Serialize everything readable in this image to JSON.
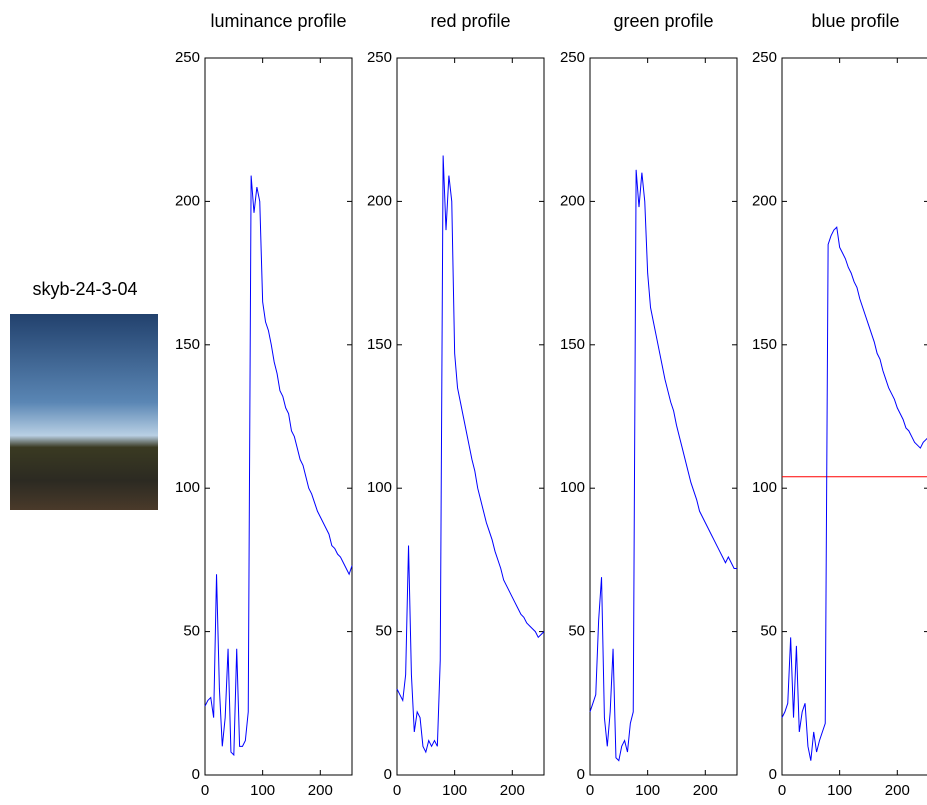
{
  "image_title": "skyb-24-3-04",
  "chart_data": [
    {
      "type": "line",
      "title": "luminance profile",
      "x": [
        0,
        5,
        10,
        15,
        20,
        25,
        30,
        35,
        40,
        45,
        50,
        55,
        60,
        65,
        70,
        75,
        80,
        85,
        90,
        95,
        100,
        105,
        110,
        115,
        120,
        125,
        130,
        135,
        140,
        145,
        150,
        155,
        160,
        165,
        170,
        175,
        180,
        185,
        190,
        195,
        200,
        205,
        210,
        215,
        220,
        225,
        230,
        235,
        240,
        245,
        250,
        255
      ],
      "series": [
        {
          "color": "#0000ff",
          "values": [
            24,
            26,
            27,
            20,
            70,
            30,
            10,
            20,
            44,
            8,
            7,
            44,
            10,
            10,
            12,
            22,
            209,
            196,
            205,
            200,
            165,
            158,
            155,
            150,
            144,
            140,
            134,
            132,
            128,
            126,
            120,
            118,
            114,
            110,
            108,
            104,
            100,
            98,
            95,
            92,
            90,
            88,
            86,
            84,
            80,
            79,
            77,
            76,
            74,
            72,
            70,
            73
          ]
        }
      ],
      "xlim": [
        0,
        255
      ],
      "ylim": [
        0,
        250
      ],
      "xticks": [
        0,
        100,
        200
      ],
      "yticks": [
        0,
        50,
        100,
        150,
        200,
        250
      ]
    },
    {
      "type": "line",
      "title": "red profile",
      "x": [
        0,
        5,
        10,
        15,
        20,
        25,
        30,
        35,
        40,
        45,
        50,
        55,
        60,
        65,
        70,
        75,
        80,
        85,
        90,
        95,
        100,
        105,
        110,
        115,
        120,
        125,
        130,
        135,
        140,
        145,
        150,
        155,
        160,
        165,
        170,
        175,
        180,
        185,
        190,
        195,
        200,
        205,
        210,
        215,
        220,
        225,
        230,
        235,
        240,
        245,
        250,
        255
      ],
      "series": [
        {
          "color": "#0000ff",
          "values": [
            30,
            28,
            26,
            35,
            80,
            35,
            15,
            22,
            20,
            10,
            8,
            12,
            10,
            12,
            10,
            40,
            216,
            190,
            209,
            200,
            147,
            135,
            130,
            125,
            120,
            115,
            110,
            106,
            100,
            96,
            92,
            88,
            85,
            82,
            78,
            75,
            72,
            68,
            66,
            64,
            62,
            60,
            58,
            56,
            55,
            53,
            52,
            51,
            50,
            48,
            49,
            50
          ]
        }
      ],
      "xlim": [
        0,
        255
      ],
      "ylim": [
        0,
        250
      ],
      "xticks": [
        0,
        100,
        200
      ],
      "yticks": [
        0,
        50,
        100,
        150,
        200,
        250
      ]
    },
    {
      "type": "line",
      "title": "green profile",
      "x": [
        0,
        5,
        10,
        15,
        20,
        25,
        30,
        35,
        40,
        45,
        50,
        55,
        60,
        65,
        70,
        75,
        80,
        85,
        90,
        95,
        100,
        105,
        110,
        115,
        120,
        125,
        130,
        135,
        140,
        145,
        150,
        155,
        160,
        165,
        170,
        175,
        180,
        185,
        190,
        195,
        200,
        205,
        210,
        215,
        220,
        225,
        230,
        235,
        240,
        245,
        250,
        255
      ],
      "series": [
        {
          "color": "#0000ff",
          "values": [
            22,
            25,
            28,
            54,
            69,
            20,
            10,
            22,
            44,
            6,
            5,
            10,
            12,
            8,
            18,
            22,
            211,
            198,
            210,
            200,
            175,
            163,
            158,
            153,
            148,
            143,
            138,
            134,
            130,
            127,
            122,
            118,
            114,
            110,
            106,
            102,
            99,
            96,
            92,
            90,
            88,
            86,
            84,
            82,
            80,
            78,
            76,
            74,
            76,
            74,
            72,
            72
          ]
        }
      ],
      "xlim": [
        0,
        255
      ],
      "ylim": [
        0,
        250
      ],
      "xticks": [
        0,
        100,
        200
      ],
      "yticks": [
        0,
        50,
        100,
        150,
        200,
        250
      ]
    },
    {
      "type": "line",
      "title": "blue profile",
      "x": [
        0,
        5,
        10,
        15,
        20,
        25,
        30,
        35,
        40,
        45,
        50,
        55,
        60,
        65,
        70,
        75,
        80,
        85,
        90,
        95,
        100,
        105,
        110,
        115,
        120,
        125,
        130,
        135,
        140,
        145,
        150,
        155,
        160,
        165,
        170,
        175,
        180,
        185,
        190,
        195,
        200,
        205,
        210,
        215,
        220,
        225,
        230,
        235,
        240,
        245,
        250,
        255
      ],
      "series": [
        {
          "color": "#0000ff",
          "values": [
            20,
            22,
            25,
            48,
            20,
            45,
            15,
            22,
            25,
            10,
            5,
            15,
            8,
            12,
            15,
            18,
            185,
            188,
            190,
            191,
            184,
            182,
            180,
            177,
            175,
            172,
            170,
            166,
            163,
            160,
            157,
            154,
            151,
            147,
            145,
            141,
            138,
            135,
            133,
            131,
            128,
            126,
            124,
            121,
            120,
            118,
            116,
            115,
            114,
            116,
            117,
            118
          ]
        }
      ],
      "hline": 104,
      "hline_color": "#ff0000",
      "xlim": [
        0,
        255
      ],
      "ylim": [
        0,
        250
      ],
      "xticks": [
        0,
        100,
        200
      ],
      "yticks": [
        0,
        50,
        100,
        150,
        200,
        250
      ]
    }
  ]
}
